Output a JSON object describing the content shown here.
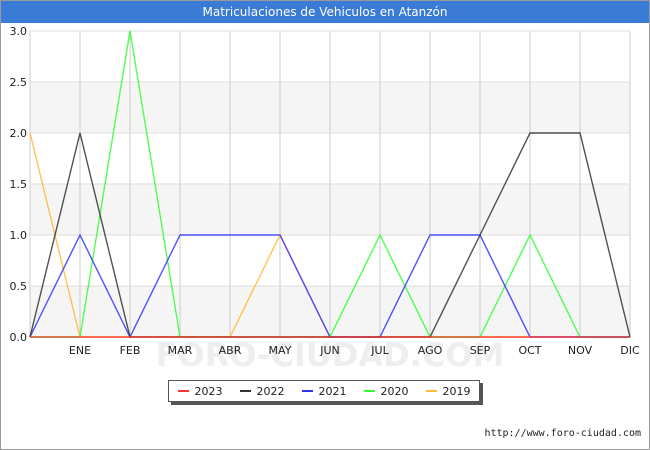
{
  "header": {
    "title": "Matriculaciones de Vehiculos en Atanzón"
  },
  "watermark": "FORO-CIUDAD.COM",
  "source": "http://www.foro-ciudad.com",
  "chart_data": {
    "type": "line",
    "title": "Matriculaciones de Vehiculos en Atanzón",
    "x": [
      "",
      "ENE",
      "FEB",
      "MAR",
      "ABR",
      "MAY",
      "JUN",
      "JUL",
      "AGO",
      "SEP",
      "OCT",
      "NOV",
      "DIC"
    ],
    "x_tick_labels": [
      "ENE",
      "FEB",
      "MAR",
      "ABR",
      "MAY",
      "JUN",
      "JUL",
      "AGO",
      "SEP",
      "OCT",
      "NOV",
      "DIC"
    ],
    "y_tick_labels": [
      "0.0",
      "0.5",
      "1.0",
      "1.5",
      "2.0",
      "2.5",
      "3.0"
    ],
    "ylim": [
      0,
      3
    ],
    "grid": true,
    "legend_position": "bottom",
    "series": [
      {
        "name": "2019",
        "color": "#ffb833",
        "values": [
          2,
          0,
          0,
          0,
          0,
          1,
          0,
          0,
          0,
          0,
          0,
          0,
          0
        ]
      },
      {
        "name": "2020",
        "color": "#33ff33",
        "values": [
          0,
          0,
          3,
          0,
          0,
          0,
          0,
          1,
          0,
          0,
          1,
          0,
          0
        ]
      },
      {
        "name": "2021",
        "color": "#3333ff",
        "values": [
          0,
          1,
          0,
          1,
          1,
          1,
          0,
          0,
          1,
          1,
          0,
          0,
          0
        ]
      },
      {
        "name": "2022",
        "color": "#333333",
        "values": [
          0,
          2,
          0,
          0,
          0,
          0,
          0,
          0,
          0,
          1,
          2,
          2,
          0
        ]
      },
      {
        "name": "2023",
        "color": "#ff3333",
        "values": [
          0,
          0,
          0,
          0,
          0,
          0,
          0,
          0,
          0,
          0,
          0,
          0,
          0
        ]
      }
    ],
    "legend_order": [
      "2023",
      "2022",
      "2021",
      "2020",
      "2019"
    ]
  }
}
